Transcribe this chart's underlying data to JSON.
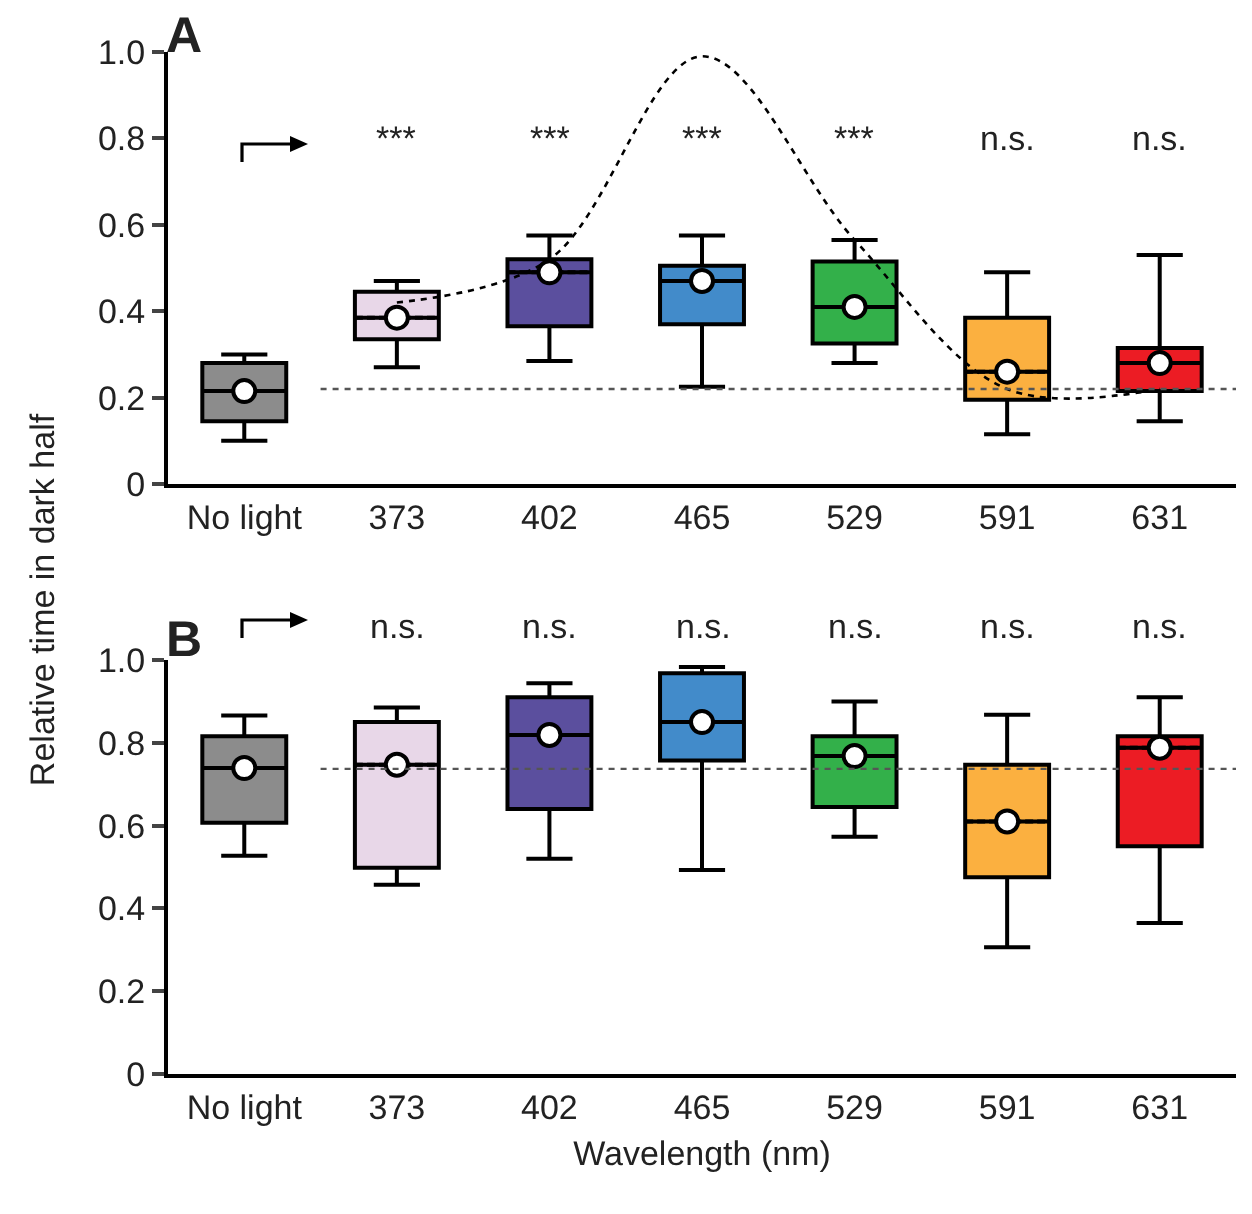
{
  "chart_data": [
    {
      "type": "box",
      "title": null,
      "ylabel": "Relative time in dark half",
      "categories": [
        "No light",
        "373",
        "402",
        "465",
        "529",
        "591",
        "631"
      ],
      "colors": [
        "#8c8c8c",
        "#e8d7e8",
        "#5b4f9e",
        "#428bca",
        "#33b04a",
        "#fbb040",
        "#ec1c24"
      ],
      "boxes": [
        {
          "low": 0.1,
          "q1": 0.145,
          "median": 0.215,
          "q3": 0.28,
          "high": 0.3,
          "mean": 0.215
        },
        {
          "low": 0.27,
          "q1": 0.335,
          "median": 0.385,
          "q3": 0.445,
          "high": 0.47,
          "mean": 0.385
        },
        {
          "low": 0.285,
          "q1": 0.365,
          "median": 0.49,
          "q3": 0.52,
          "high": 0.575,
          "mean": 0.49
        },
        {
          "low": 0.225,
          "q1": 0.37,
          "median": 0.47,
          "q3": 0.505,
          "high": 0.575,
          "mean": 0.47
        },
        {
          "low": 0.28,
          "q1": 0.325,
          "median": 0.41,
          "q3": 0.515,
          "high": 0.565,
          "mean": 0.41
        },
        {
          "low": 0.115,
          "q1": 0.195,
          "median": 0.26,
          "q3": 0.385,
          "high": 0.49,
          "mean": 0.26
        },
        {
          "low": 0.145,
          "q1": 0.215,
          "median": 0.28,
          "q3": 0.315,
          "high": 0.53,
          "mean": 0.28
        }
      ],
      "series": [
        {
          "type": "line",
          "color": "#000000",
          "line_style": "dotted",
          "values": [
            null,
            0.42,
            0.52,
            0.99,
            0.565,
            0.22,
            0.22
          ]
        }
      ],
      "ylim": [
        0,
        1
      ],
      "yticks": [
        0,
        0.2,
        0.4,
        0.6,
        0.8,
        {
          "value": 1,
          "label": "1.0"
        }
      ],
      "ref_lines": [
        {
          "axis": "y",
          "value": 0.22,
          "label": null,
          "line_style": "dotted",
          "color": "#555555"
        }
      ],
      "annotations": [
        "A",
        "***",
        "***",
        "***",
        "***",
        "n.s.",
        "n.s."
      ],
      "grid": false
    },
    {
      "type": "box",
      "xlabel": "Wavelength (nm)",
      "categories": [
        "No light",
        "373",
        "402",
        "465",
        "529",
        "591",
        "631"
      ],
      "colors": [
        "#8c8c8c",
        "#e8d7e8",
        "#5b4f9e",
        "#428bca",
        "#33b04a",
        "#fbb040",
        "#ec1c24"
      ],
      "boxes": [
        {
          "low": 0.527,
          "q1": 0.607,
          "median": 0.739,
          "q3": 0.816,
          "high": 0.866,
          "mean": 0.739
        },
        {
          "low": 0.457,
          "q1": 0.498,
          "median": 0.747,
          "q3": 0.85,
          "high": 0.885,
          "mean": 0.747
        },
        {
          "low": 0.52,
          "q1": 0.64,
          "median": 0.819,
          "q3": 0.91,
          "high": 0.944,
          "mean": 0.819
        },
        {
          "low": 0.493,
          "q1": 0.757,
          "median": 0.85,
          "q3": 0.968,
          "high": 0.983,
          "mean": 0.85
        },
        {
          "low": 0.573,
          "q1": 0.645,
          "median": 0.768,
          "q3": 0.816,
          "high": 0.9,
          "mean": 0.768
        },
        {
          "low": 0.306,
          "q1": 0.475,
          "median": 0.61,
          "q3": 0.747,
          "high": 0.868,
          "mean": 0.61
        },
        {
          "low": 0.365,
          "q1": 0.55,
          "median": 0.788,
          "q3": 0.816,
          "high": 0.91,
          "mean": 0.788
        }
      ],
      "ylim": [
        0,
        1
      ],
      "yticks": [
        0,
        0.2,
        0.4,
        0.6,
        0.8,
        {
          "value": 1,
          "label": "1.0"
        }
      ],
      "ref_lines": [
        {
          "axis": "y",
          "value": 0.737,
          "label": null,
          "line_style": "dotted",
          "color": "#555555"
        }
      ],
      "annotations": [
        "B",
        "n.s.",
        "n.s.",
        "n.s.",
        "n.s.",
        "n.s.",
        "n.s."
      ],
      "grid": false
    }
  ]
}
